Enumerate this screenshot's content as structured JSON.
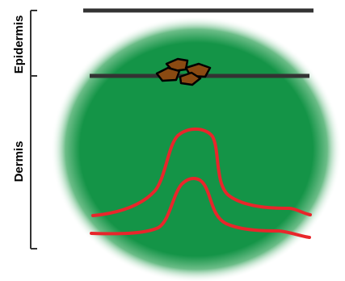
{
  "labels": {
    "epidermis": "Epidermis",
    "dermis": "Dermis"
  },
  "colors": {
    "tissue": "#149447",
    "line": "#333333",
    "vessel": "#e8262b",
    "particle_fill": "#8a4a12",
    "particle_stroke": "#000000",
    "scale": "#333333"
  }
}
